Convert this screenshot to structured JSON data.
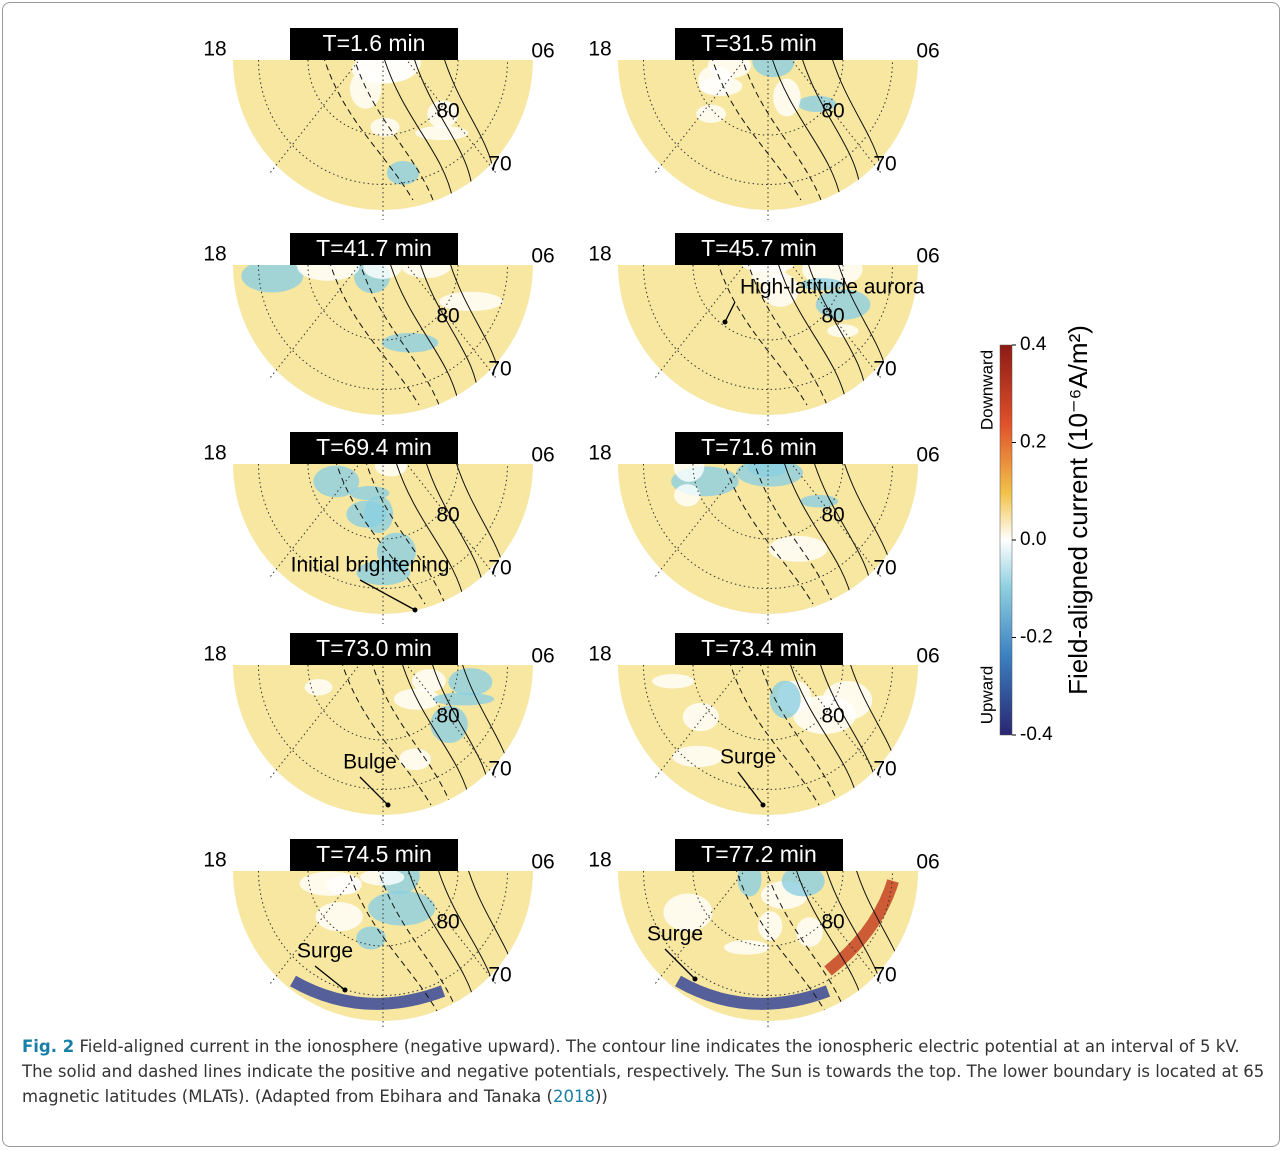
{
  "figure": {
    "panels": [
      {
        "title": "T=1.6 min"
      },
      {
        "title": "T=31.5 min"
      },
      {
        "title": "T=41.7 min"
      },
      {
        "title": "T=45.7 min",
        "annotation": "High-latitude aurora"
      },
      {
        "title": "T=69.4 min",
        "annotation": "Initial brightening"
      },
      {
        "title": "T=71.6 min"
      },
      {
        "title": "T=73.0 min",
        "annotation": "Bulge"
      },
      {
        "title": "T=73.4 min",
        "annotation": "Surge"
      },
      {
        "title": "T=74.5 min",
        "annotation": "Surge"
      },
      {
        "title": "T=77.2 min",
        "annotation": "Surge"
      }
    ],
    "mlt_labels": [
      "18",
      "06"
    ],
    "lat_labels": [
      "80",
      "70"
    ],
    "colorbar": {
      "label": "Field-aligned current  (10⁻⁶A/m²)",
      "top_label": "Downward",
      "bottom_label": "Upward",
      "lim": [
        -0.4,
        0.4
      ],
      "ticks": [
        0.4,
        0.2,
        {
          "value": 0,
          "label": "0.0"
        },
        -0.2,
        -0.4
      ]
    }
  },
  "caption": {
    "label": "Fig. 2",
    "text": "Field-aligned current in the ionosphere (negative upward). The contour line indicates the ionospheric electric potential at an interval of 5 kV. The solid and dashed lines indicate the positive and negative potentials, respectively. The Sun is towards the top. The lower boundary is located at 65 magnetic latitudes (MLATs). (Adapted from Ebihara and Tanaka (",
    "link": "2018",
    "text_end": "))"
  }
}
